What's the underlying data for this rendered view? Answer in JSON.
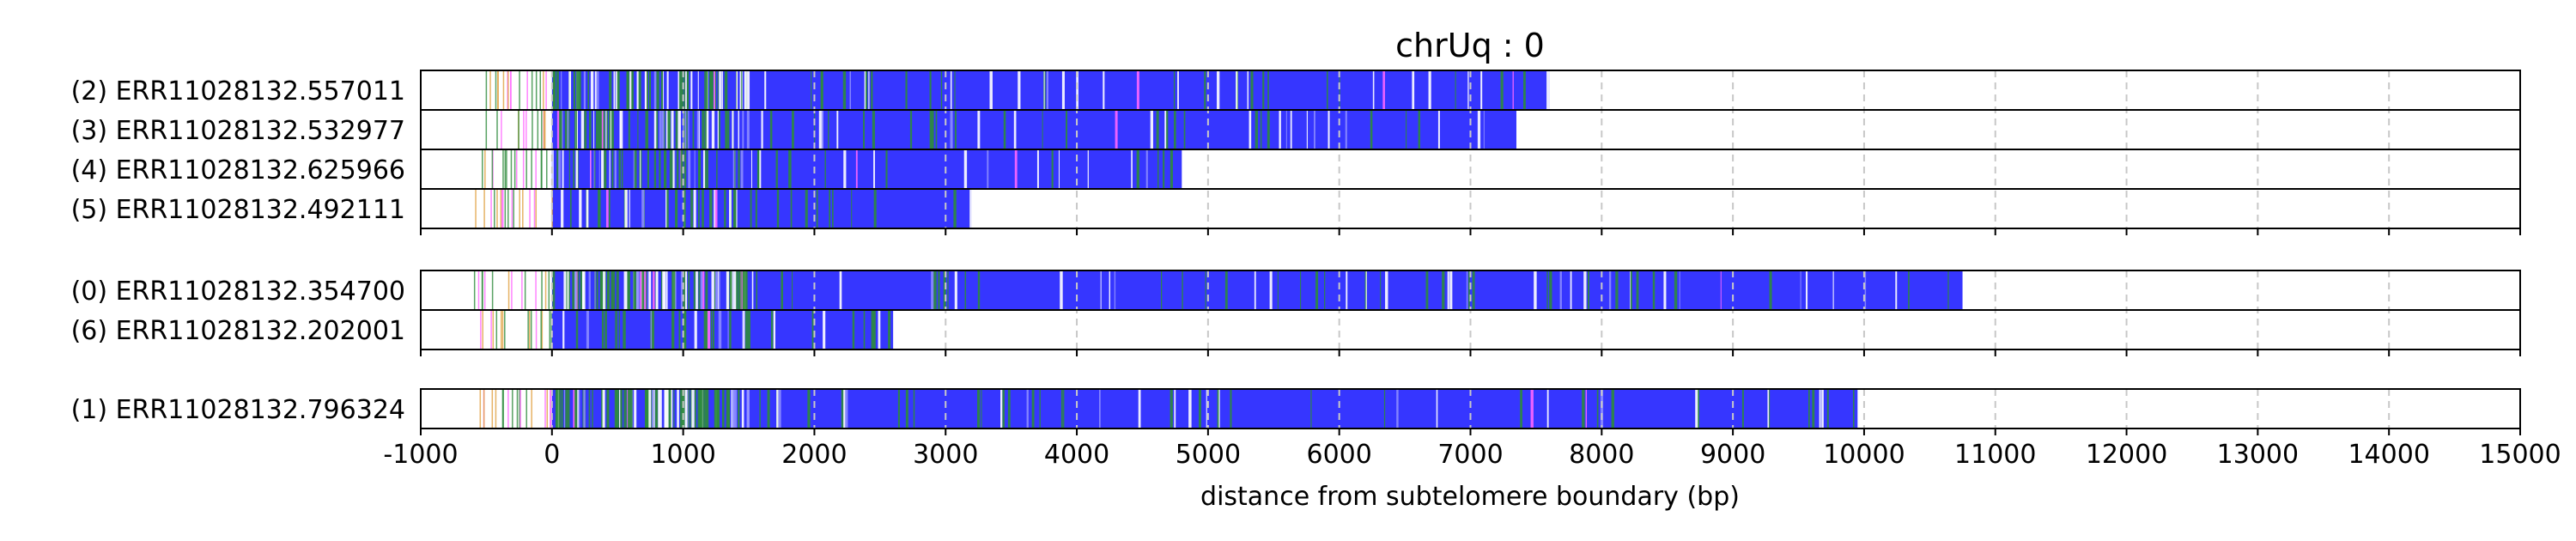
{
  "chart_data": {
    "type": "bar",
    "title": "chrUq : 0",
    "xlabel": "distance from subtelomere boundary (bp)",
    "ylabel": "",
    "xlim": [
      -1000,
      15000
    ],
    "xticks": [
      "-1000",
      "0",
      "1000",
      "2000",
      "3000",
      "4000",
      "5000",
      "6000",
      "7000",
      "8000",
      "9000",
      "10000",
      "11000",
      "12000",
      "13000",
      "14000",
      "15000"
    ],
    "grid": true,
    "colors": {
      "main": "#3636ff",
      "secondary": "#2e8b3c",
      "accent": "#ff66ff",
      "gap": "#ffffff",
      "frame": "#000000"
    },
    "groups": [
      {
        "reads": [
          {
            "label": "(2) ERR11028132.557011",
            "end": 7600
          },
          {
            "label": "(3) ERR11028132.532977",
            "end": 7350
          },
          {
            "label": "(4) ERR11028132.625966",
            "end": 4800
          },
          {
            "label": "(5) ERR11028132.492111",
            "end": 3200
          }
        ]
      },
      {
        "reads": [
          {
            "label": "(0) ERR11028132.354700",
            "end": 10750
          },
          {
            "label": "(6) ERR11028132.202001",
            "end": 2600
          }
        ]
      },
      {
        "reads": [
          {
            "label": "(1) ERR11028132.796324",
            "end": 9950
          }
        ]
      }
    ]
  }
}
